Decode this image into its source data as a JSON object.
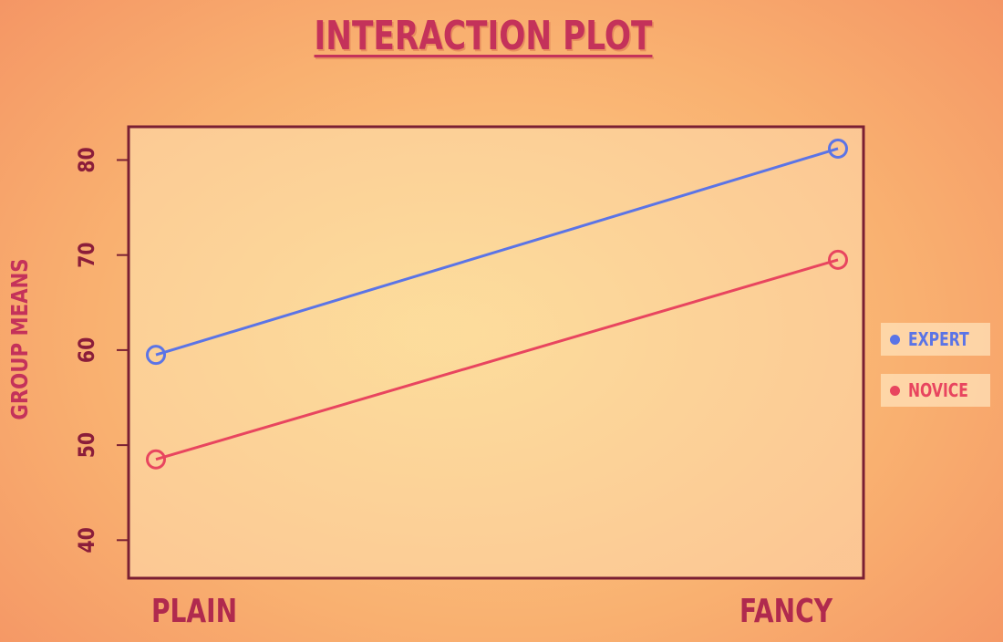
{
  "chart_data": {
    "type": "line",
    "title": "INTERACTION PLOT",
    "ylabel": "GROUP MEANS",
    "xlabel": "",
    "categories": [
      "PLAIN",
      "FANCY"
    ],
    "ylim": [
      36,
      83.5
    ],
    "yticks": [
      40,
      50,
      60,
      70,
      80
    ],
    "grid": false,
    "legend_position": "right",
    "series": [
      {
        "name": "EXPERT",
        "values": [
          59.5,
          81.2
        ],
        "color": "#5b74e6"
      },
      {
        "name": "NOVICE",
        "values": [
          48.5,
          69.5
        ],
        "color": "#e8455f"
      }
    ]
  },
  "colors": {
    "title": "#c4325a",
    "axis_text": "#8b1d3a",
    "axis_label": "#c4325a",
    "frame": "#7a1f33",
    "category_label": "#b02a4e"
  }
}
